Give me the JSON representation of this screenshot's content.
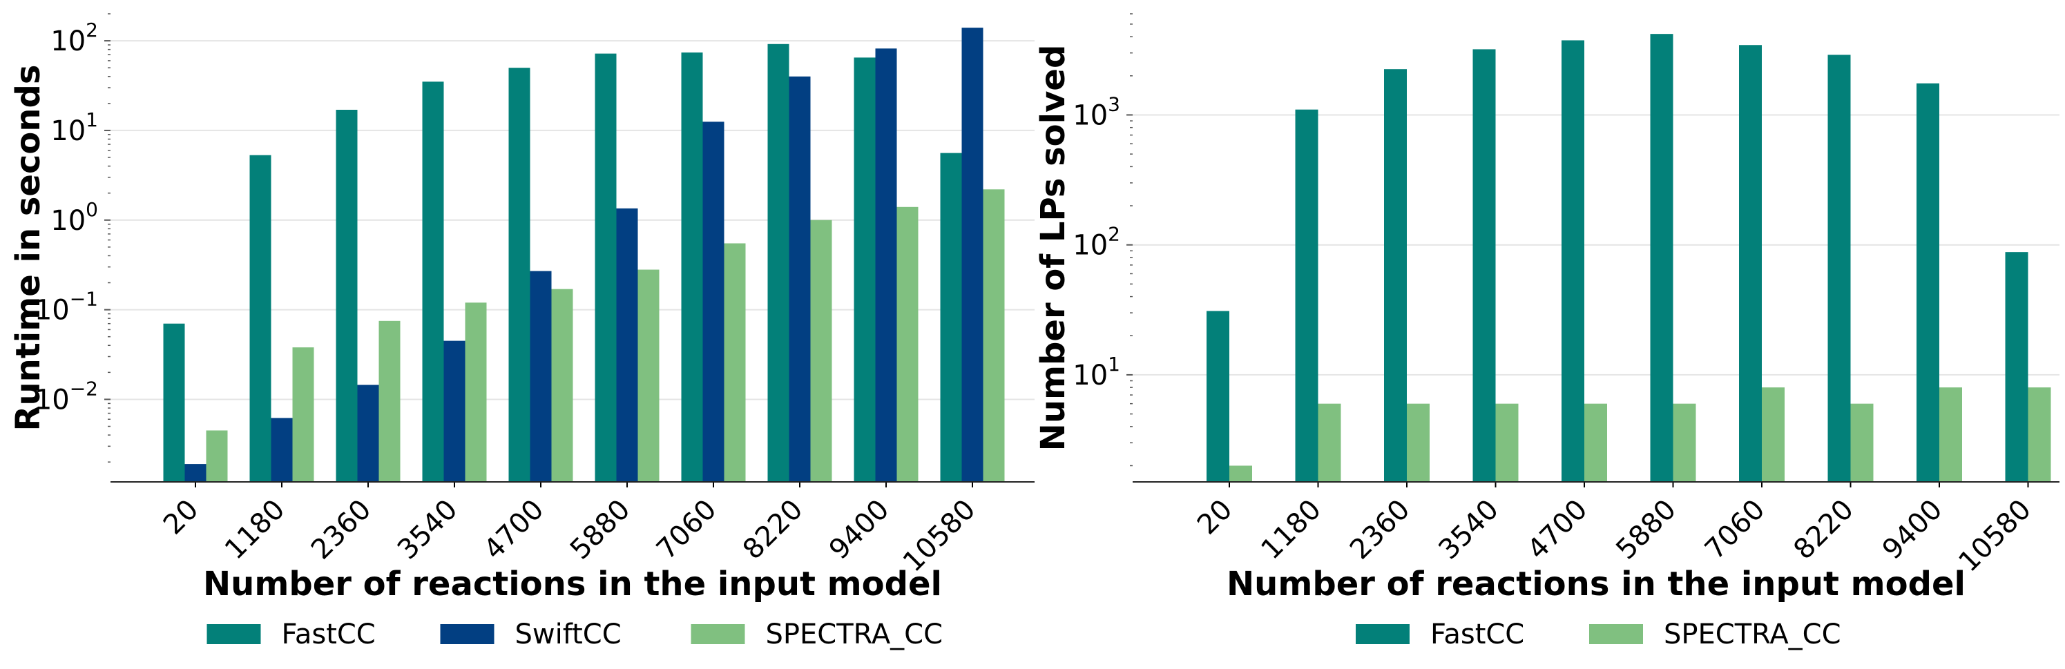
{
  "chart_data": [
    {
      "type": "bar",
      "yscale": "log",
      "ylim": [
        0.0012,
        200
      ],
      "xlabel": "Number of reactions in the input model",
      "ylabel": "Runtime in seconds",
      "categories": [
        "20",
        "1180",
        "2360",
        "3540",
        "4700",
        "5880",
        "7060",
        "8220",
        "9400",
        "10580"
      ],
      "yticks": [
        {
          "value": 0.01,
          "base": "10",
          "exp": "−2"
        },
        {
          "value": 0.1,
          "base": "10",
          "exp": "−1"
        },
        {
          "value": 1,
          "base": "10",
          "exp": "0"
        },
        {
          "value": 10,
          "base": "10",
          "exp": "1"
        },
        {
          "value": 100,
          "base": "10",
          "exp": "2"
        }
      ],
      "grid": "y-major",
      "legend_position": "bottom-center",
      "series": [
        {
          "name": "FastCC",
          "color": "#038079",
          "values": [
            0.07,
            5.3,
            17,
            35,
            50,
            72,
            74,
            92,
            65,
            5.6
          ]
        },
        {
          "name": "SwiftCC",
          "color": "#023f82",
          "values": [
            0.0019,
            0.0062,
            0.0145,
            0.045,
            0.27,
            1.35,
            12.5,
            40,
            82,
            140
          ]
        },
        {
          "name": "SPECTRA_CC",
          "color": "#80c080",
          "values": [
            0.0045,
            0.038,
            0.075,
            0.12,
            0.17,
            0.28,
            0.55,
            1.0,
            1.4,
            2.2
          ]
        }
      ]
    },
    {
      "type": "bar",
      "yscale": "log",
      "ylim": [
        1.5,
        6000
      ],
      "xlabel": "Number of reactions in the input model",
      "ylabel": "Number of LPs solved",
      "categories": [
        "20",
        "1180",
        "2360",
        "3540",
        "4700",
        "5880",
        "7060",
        "8220",
        "9400",
        "10580"
      ],
      "yticks": [
        {
          "value": 10,
          "base": "10",
          "exp": "1"
        },
        {
          "value": 100,
          "base": "10",
          "exp": "2"
        },
        {
          "value": 1000,
          "base": "10",
          "exp": "3"
        }
      ],
      "grid": "y-major",
      "legend_position": "bottom-center",
      "series": [
        {
          "name": "FastCC",
          "color": "#038079",
          "values": [
            31,
            1100,
            2250,
            3200,
            3750,
            4200,
            3450,
            2900,
            1750,
            88
          ]
        },
        {
          "name": "SPECTRA_CC",
          "color": "#80c080",
          "values": [
            2,
            6,
            6,
            6,
            6,
            6,
            8,
            6,
            8,
            8
          ]
        }
      ]
    }
  ]
}
